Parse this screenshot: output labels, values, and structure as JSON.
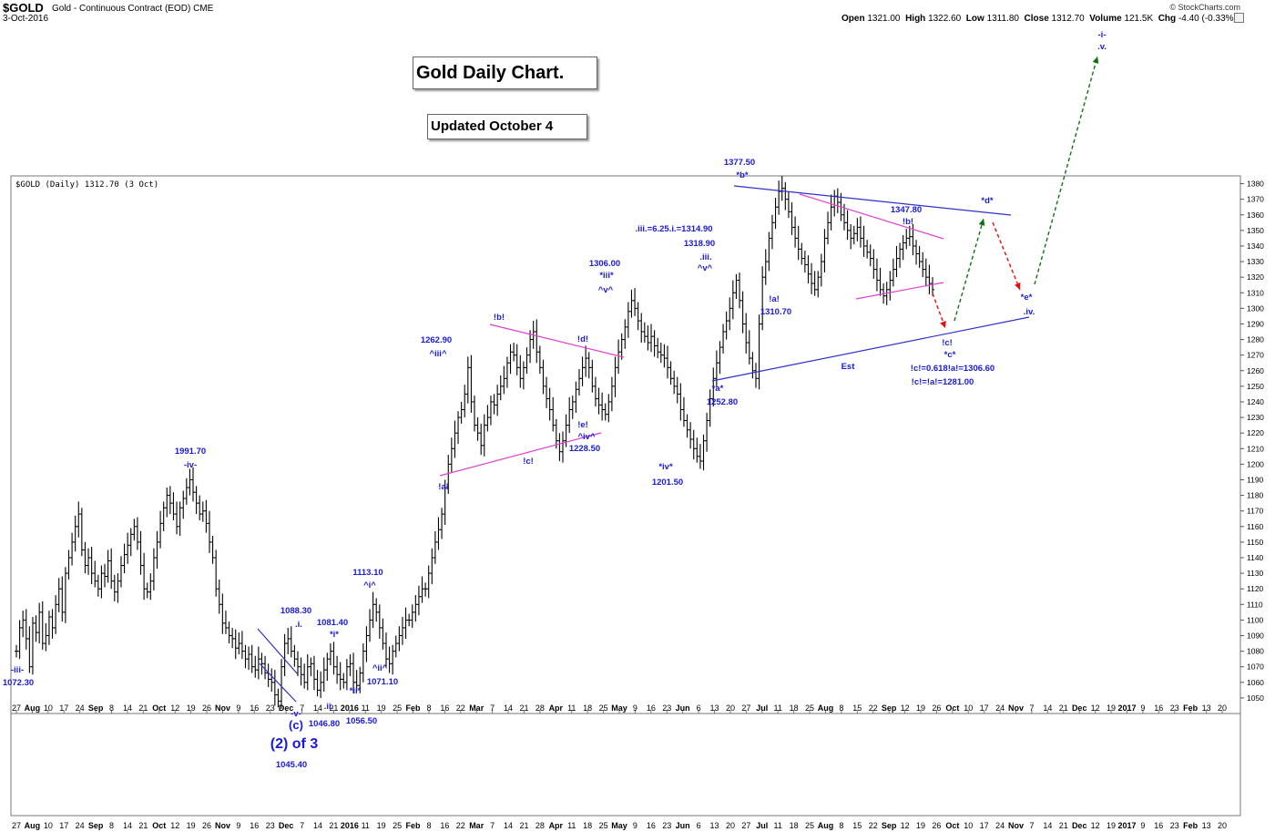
{
  "header": {
    "symbol": "$GOLD",
    "name": "Gold - Continuous Contract (EOD)",
    "exchange": "CME",
    "date": "3-Oct-2016",
    "source": "© StockCharts.com",
    "open_label": "Open",
    "open": "1321.00",
    "high_label": "High",
    "high": "1322.60",
    "low_label": "Low",
    "low": "1311.80",
    "close_label": "Close",
    "close": "1312.70",
    "volume_label": "Volume",
    "volume": "121.5K",
    "chg_label": "Chg",
    "chg": "-4.40 (-0.33%)"
  },
  "titles": {
    "main": "Gold Daily Chart.",
    "updated": "Updated October 4"
  },
  "legend": "$GOLD (Daily) 1312.70 (3 Oct)",
  "chart_data": {
    "type": "ohlc",
    "ylim": [
      1040,
      1385
    ],
    "yticks": [
      1050,
      1060,
      1070,
      1080,
      1090,
      1100,
      1110,
      1120,
      1130,
      1140,
      1150,
      1160,
      1170,
      1180,
      1190,
      1200,
      1210,
      1220,
      1230,
      1240,
      1250,
      1260,
      1270,
      1280,
      1290,
      1300,
      1310,
      1320,
      1330,
      1340,
      1350,
      1360,
      1370,
      1380
    ],
    "x_axis_labels": [
      "27",
      "Aug",
      "10",
      "17",
      "24",
      "Sep",
      "8",
      "14",
      "21",
      "Oct",
      "12",
      "19",
      "26",
      "Nov",
      "9",
      "16",
      "23",
      "Dec",
      "7",
      "14",
      "21",
      "2016",
      "11",
      "19",
      "25",
      "Feb",
      "8",
      "16",
      "22",
      "Mar",
      "7",
      "14",
      "21",
      "28",
      "Apr",
      "11",
      "18",
      "25",
      "May",
      "9",
      "16",
      "23",
      "Jun",
      "6",
      "13",
      "20",
      "27",
      "Jul",
      "11",
      "18",
      "25",
      "Aug",
      "8",
      "15",
      "22",
      "Sep",
      "12",
      "19",
      "26",
      "Oct",
      "10",
      "17",
      "24",
      "Nov",
      "7",
      "14",
      "21",
      "Dec",
      "12",
      "19",
      "2017",
      "9",
      "16",
      "23",
      "Feb",
      "13",
      "20"
    ],
    "price_path": [
      1080,
      1095,
      1100,
      1088,
      1070,
      1098,
      1092,
      1105,
      1085,
      1090,
      1102,
      1095,
      1110,
      1120,
      1105,
      1130,
      1140,
      1150,
      1160,
      1168,
      1145,
      1135,
      1140,
      1130,
      1125,
      1120,
      1130,
      1128,
      1138,
      1125,
      1118,
      1125,
      1135,
      1142,
      1148,
      1155,
      1160,
      1150,
      1135,
      1120,
      1118,
      1125,
      1140,
      1150,
      1162,
      1172,
      1180,
      1175,
      1168,
      1160,
      1172,
      1178,
      1185,
      1190,
      1182,
      1175,
      1168,
      1170,
      1162,
      1150,
      1140,
      1120,
      1110,
      1098,
      1095,
      1090,
      1088,
      1082,
      1085,
      1080,
      1075,
      1078,
      1070,
      1068,
      1075,
      1072,
      1066,
      1062,
      1060,
      1052,
      1048,
      1070,
      1085,
      1088,
      1080,
      1075,
      1070,
      1065,
      1060,
      1070,
      1072,
      1062,
      1055,
      1060,
      1068,
      1075,
      1080,
      1070,
      1065,
      1062,
      1060,
      1070,
      1072,
      1060,
      1058,
      1066,
      1080,
      1090,
      1100,
      1110,
      1105,
      1095,
      1085,
      1075,
      1072,
      1080,
      1085,
      1090,
      1095,
      1100,
      1100,
      1105,
      1110,
      1115,
      1120,
      1120,
      1130,
      1140,
      1150,
      1158,
      1168,
      1185,
      1200,
      1210,
      1220,
      1230,
      1235,
      1245,
      1262,
      1240,
      1225,
      1220,
      1212,
      1225,
      1230,
      1240,
      1238,
      1245,
      1250,
      1255,
      1265,
      1272,
      1270,
      1262,
      1255,
      1262,
      1270,
      1280,
      1285,
      1272,
      1262,
      1250,
      1242,
      1235,
      1225,
      1215,
      1208,
      1215,
      1225,
      1235,
      1240,
      1248,
      1255,
      1262,
      1268,
      1262,
      1250,
      1242,
      1238,
      1235,
      1232,
      1240,
      1250,
      1262,
      1272,
      1280,
      1288,
      1298,
      1305,
      1300,
      1292,
      1285,
      1282,
      1278,
      1282,
      1276,
      1272,
      1270,
      1268,
      1262,
      1255,
      1250,
      1245,
      1235,
      1228,
      1222,
      1216,
      1210,
      1205,
      1202,
      1215,
      1228,
      1242,
      1255,
      1265,
      1275,
      1285,
      1292,
      1300,
      1310,
      1318,
      1305,
      1290,
      1278,
      1268,
      1260,
      1255,
      1290,
      1320,
      1330,
      1345,
      1355,
      1365,
      1375,
      1377,
      1370,
      1362,
      1352,
      1345,
      1338,
      1332,
      1328,
      1322,
      1316,
      1312,
      1320,
      1330,
      1345,
      1355,
      1365,
      1372,
      1368,
      1360,
      1355,
      1350,
      1345,
      1348,
      1352,
      1345,
      1340,
      1336,
      1332,
      1325,
      1318,
      1312,
      1308,
      1312,
      1318,
      1325,
      1332,
      1338,
      1342,
      1345,
      1346,
      1340,
      1335,
      1330,
      1325,
      1320,
      1316,
      1312
    ],
    "annotations": [
      {
        "text": "-iii-",
        "color": "blue"
      },
      {
        "text": "1072.30",
        "color": "blue"
      },
      {
        "text": "1991.70",
        "color": "blue"
      },
      {
        "text": "-iv-",
        "color": "blue"
      },
      {
        "text": "1088.30",
        "color": "blue"
      },
      {
        "text": ".i.",
        "color": "blue"
      },
      {
        "text": "1081.40",
        "color": "blue"
      },
      {
        "text": "*i*",
        "color": "blue"
      },
      {
        "text": "-v-",
        "color": "blue"
      },
      {
        "text": "(c)",
        "color": "blue"
      },
      {
        "text": "(2) of 3",
        "color": "blue"
      },
      {
        "text": "1045.40",
        "color": "blue"
      },
      {
        "text": ".ii.",
        "color": "blue"
      },
      {
        "text": "1046.80",
        "color": "blue"
      },
      {
        "text": "*ii*",
        "color": "blue"
      },
      {
        "text": "1056.50",
        "color": "blue"
      },
      {
        "text": "1113.10",
        "color": "blue"
      },
      {
        "text": "^i^",
        "color": "blue"
      },
      {
        "text": "^ii^",
        "color": "blue"
      },
      {
        "text": "1071.10",
        "color": "blue"
      },
      {
        "text": "1262.90",
        "color": "blue"
      },
      {
        "text": "^iii^",
        "color": "blue"
      },
      {
        "text": "!a!",
        "color": "blue"
      },
      {
        "text": "!b!",
        "color": "blue"
      },
      {
        "text": "!c!",
        "color": "blue"
      },
      {
        "text": "!d!",
        "color": "blue"
      },
      {
        "text": "!e!",
        "color": "blue"
      },
      {
        "text": "^iv^",
        "color": "blue"
      },
      {
        "text": "1228.50",
        "color": "blue"
      },
      {
        "text": "1306.00",
        "color": "blue"
      },
      {
        "text": "*iii*",
        "color": "blue"
      },
      {
        "text": "^v^",
        "color": "blue"
      },
      {
        "text": "*iv*",
        "color": "blue"
      },
      {
        "text": "1201.50",
        "color": "blue"
      },
      {
        "text": ".iii.=6.25.i.=1314.90",
        "color": "blue"
      },
      {
        "text": "1318.90",
        "color": "blue"
      },
      {
        "text": ".iii.",
        "color": "blue"
      },
      {
        "text": "^v^",
        "color": "blue"
      },
      {
        "text": "*a*",
        "color": "blue"
      },
      {
        "text": "1252.80",
        "color": "blue"
      },
      {
        "text": "1377.50",
        "color": "blue"
      },
      {
        "text": "*b*",
        "color": "blue"
      },
      {
        "text": "!a!",
        "color": "blue"
      },
      {
        "text": "1310.70",
        "color": "blue"
      },
      {
        "text": "1347.80",
        "color": "blue"
      },
      {
        "text": "!b!",
        "color": "blue"
      },
      {
        "text": "*d*",
        "color": "blue"
      },
      {
        "text": "!c!",
        "color": "blue"
      },
      {
        "text": "*c*",
        "color": "blue"
      },
      {
        "text": "!c!=0.618!a!=1306.60",
        "color": "blue"
      },
      {
        "text": "!c!=!a!=1281.00",
        "color": "blue"
      },
      {
        "text": "Est",
        "color": "blue"
      },
      {
        "text": "*e*",
        "color": "blue"
      },
      {
        "text": ".iv.",
        "color": "blue"
      },
      {
        "text": "-i-",
        "color": "blue"
      },
      {
        "text": ".v.",
        "color": "blue"
      }
    ],
    "colors": {
      "bars": "#000000",
      "trend_blue": "#3030cc",
      "trend_magenta": "#e040d0",
      "labels": "#1a1ad8",
      "arrow_red": "#e01010",
      "arrow_green": "#107010"
    }
  }
}
